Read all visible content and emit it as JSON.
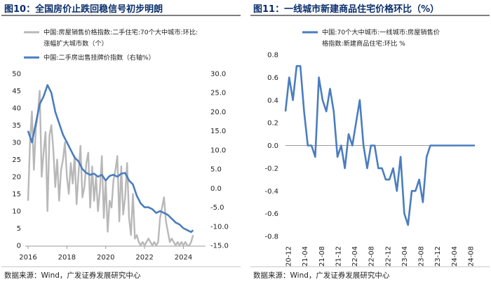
{
  "left": {
    "title": "图10：全国房价止跌回稳信号初步明朗",
    "source": "数据来源：Wind，广发证券发展研究中心",
    "legend_gray_1": "中国:房屋销售价格指数:二手住宅:70个大中城市:环比:",
    "legend_gray_2": "涨幅扩大城市数（个）",
    "legend_blue": "中国:二手房出售挂牌价指数（右轴%）",
    "colors": {
      "gray": "#b8b8b8",
      "blue": "#4a7dbf"
    }
  },
  "right": {
    "title": "图11：一线城市新建商品住宅价格环比（%）",
    "source": "数据来源：Wind，广发证券发展研究中心",
    "legend_1": "中国:70个大中城市:一线城市:房屋销售价",
    "legend_2": "格指数:新建商品住宅:环比 %",
    "colors": {
      "blue": "#4a7dbf"
    }
  },
  "chart_data": [
    {
      "type": "line",
      "x_ticks": [
        "2016",
        "2018",
        "2020",
        "2022",
        "2024"
      ],
      "y_left_ticks": [
        "0",
        "5",
        "10",
        "15",
        "20",
        "25",
        "30",
        "35",
        "40",
        "45",
        "50"
      ],
      "y_right_ticks": [
        "-15.0",
        "-10.0",
        "-5.0",
        "0.0",
        "5.0",
        "10.0",
        "15.0",
        "20.0",
        "25.0",
        "30.0"
      ],
      "ylim_left": [
        0,
        50
      ],
      "ylim_right": [
        -15,
        30
      ],
      "xlim": [
        2016.0,
        2024.85
      ],
      "series": [
        {
          "name": "中国:房屋销售价格指数:二手住宅:70个大中城市:环比:涨幅扩大城市数（个）",
          "axis": "left",
          "x": [
            2016.0,
            2016.1,
            2016.2,
            2016.3,
            2016.4,
            2016.5,
            2016.6,
            2016.7,
            2016.8,
            2016.9,
            2017.0,
            2017.1,
            2017.2,
            2017.3,
            2017.4,
            2017.5,
            2017.6,
            2017.7,
            2017.8,
            2017.9,
            2018.0,
            2018.1,
            2018.2,
            2018.3,
            2018.4,
            2018.5,
            2018.6,
            2018.7,
            2018.8,
            2018.9,
            2019.0,
            2019.1,
            2019.2,
            2019.3,
            2019.4,
            2019.5,
            2019.6,
            2019.7,
            2019.8,
            2019.9,
            2020.0,
            2020.1,
            2020.2,
            2020.3,
            2020.4,
            2020.5,
            2020.6,
            2020.7,
            2020.8,
            2020.9,
            2021.0,
            2021.1,
            2021.2,
            2021.3,
            2021.4,
            2021.5,
            2021.6,
            2021.7,
            2021.8,
            2021.9,
            2022.0,
            2022.1,
            2022.2,
            2022.3,
            2022.4,
            2022.5,
            2022.6,
            2022.7,
            2022.8,
            2022.9,
            2023.0,
            2023.1,
            2023.2,
            2023.3,
            2023.4,
            2023.5,
            2023.6,
            2023.7,
            2023.8,
            2023.9,
            2024.0,
            2024.1,
            2024.2,
            2024.3,
            2024.4,
            2024.5
          ],
          "values": [
            13,
            30,
            39,
            22,
            34,
            38,
            45,
            20,
            27,
            33,
            10,
            32,
            35,
            28,
            17,
            25,
            13,
            22,
            25,
            30,
            20,
            15,
            24,
            18,
            26,
            12,
            21,
            29,
            14,
            17,
            24,
            27,
            11,
            23,
            13,
            20,
            10,
            16,
            26,
            8,
            19,
            4,
            13,
            11,
            19,
            22,
            26,
            7,
            23,
            9,
            14,
            24,
            8,
            3,
            15,
            2,
            3,
            1,
            0,
            1,
            0,
            1,
            2,
            1,
            0,
            1,
            0,
            1,
            8,
            11,
            14,
            7,
            4,
            1,
            2,
            1,
            0,
            1,
            0,
            1,
            0,
            1,
            0,
            0,
            1,
            3
          ]
        },
        {
          "name": "中国:二手房出售挂牌价指数（右轴%）",
          "axis": "right",
          "x": [
            2016.0,
            2016.2,
            2016.4,
            2016.6,
            2016.8,
            2017.0,
            2017.2,
            2017.4,
            2017.6,
            2017.8,
            2018.0,
            2018.2,
            2018.4,
            2018.6,
            2018.8,
            2019.0,
            2019.2,
            2019.4,
            2019.6,
            2019.8,
            2020.0,
            2020.2,
            2020.4,
            2020.6,
            2020.8,
            2021.0,
            2021.2,
            2021.4,
            2021.6,
            2021.8,
            2022.0,
            2022.2,
            2022.4,
            2022.6,
            2022.8,
            2023.0,
            2023.2,
            2023.4,
            2023.6,
            2023.8,
            2024.0,
            2024.2,
            2024.4,
            2024.5
          ],
          "values": [
            15,
            12,
            17,
            22,
            24,
            27,
            25,
            20,
            17,
            14,
            12,
            10,
            8,
            7,
            5,
            4,
            3.5,
            3.8,
            3,
            3.5,
            2,
            3.2,
            3.5,
            3,
            3.8,
            4,
            2,
            1,
            -2,
            -4,
            -5,
            -5,
            -5.5,
            -6.5,
            -6,
            -6.5,
            -7,
            -8,
            -9,
            -9.5,
            -10.5,
            -11,
            -11.5,
            -11
          ]
        }
      ]
    },
    {
      "type": "line",
      "categories": [
        "20-12",
        "21-04",
        "21-08",
        "21-12",
        "22-04",
        "22-08",
        "22-12",
        "23-04",
        "23-08",
        "23-12",
        "24-04",
        "24-08"
      ],
      "y_ticks": [
        "0.8",
        "0.6",
        "0.4",
        "0.2",
        "0.0",
        "-0.2",
        "-0.4",
        "-0.6",
        "-0.8"
      ],
      "ylim": [
        -0.8,
        0.8
      ],
      "series": [
        {
          "name": "中国:70个大中城市:一线城市:房屋销售价格指数:新建商品住宅:环比 %",
          "x": [
            0,
            1,
            2,
            3,
            4,
            5,
            6,
            7,
            8,
            9,
            10,
            11,
            12,
            13,
            14,
            15,
            16,
            17,
            18,
            19,
            20,
            21,
            22,
            23,
            24,
            25,
            26,
            27,
            28,
            29,
            30,
            31,
            32,
            33,
            34,
            35,
            36,
            37,
            38,
            39,
            40,
            41,
            42,
            43,
            44,
            45,
            46,
            47,
            48,
            49,
            50,
            51
          ],
          "values": [
            0.3,
            0.6,
            0.4,
            0.7,
            0.7,
            0.3,
            0.0,
            0.0,
            -0.1,
            0.6,
            0.4,
            0.3,
            0.5,
            0.3,
            -0.1,
            0.0,
            -0.2,
            0.1,
            0.0,
            0.2,
            0.4,
            0.0,
            -0.2,
            0.0,
            0.0,
            -0.2,
            -0.2,
            -0.3,
            -0.3,
            -0.2,
            -0.4,
            -0.1,
            -0.6,
            -0.7,
            -0.4,
            -0.4,
            -0.3,
            -0.5,
            -0.1,
            0.0,
            0.0,
            0.0,
            0.0,
            0.0,
            0.0,
            0.0,
            0.0,
            0.0,
            0.0,
            0.0,
            0.0,
            0.0
          ]
        }
      ]
    }
  ]
}
